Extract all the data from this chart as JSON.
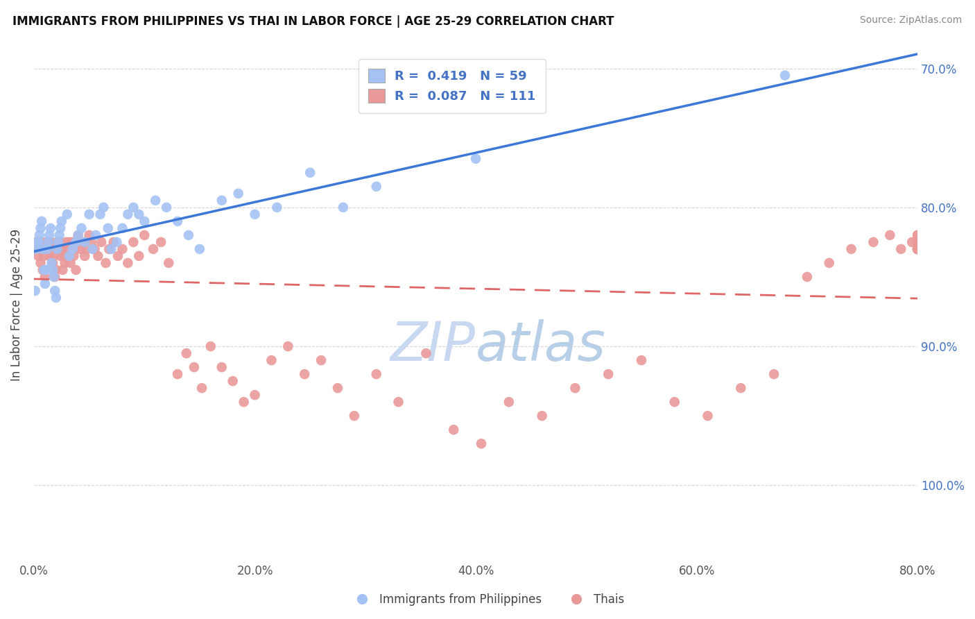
{
  "title": "IMMIGRANTS FROM PHILIPPINES VS THAI IN LABOR FORCE | AGE 25-29 CORRELATION CHART",
  "source": "Source: ZipAtlas.com",
  "ylabel": "In Labor Force | Age 25-29",
  "xlim": [
    0.0,
    0.8
  ],
  "ylim": [
    0.645,
    1.015
  ],
  "xtick_labels": [
    "0.0%",
    "20.0%",
    "40.0%",
    "60.0%",
    "80.0%"
  ],
  "xtick_vals": [
    0.0,
    0.2,
    0.4,
    0.6,
    0.8
  ],
  "ytick_vals": [
    0.7,
    0.8,
    0.9,
    1.0
  ],
  "right_ytick_labels": [
    "100.0%",
    "90.0%",
    "80.0%",
    "70.0%"
  ],
  "philippines_R": 0.419,
  "philippines_N": 59,
  "thai_R": 0.087,
  "thai_N": 111,
  "blue_color": "#a4c2f4",
  "pink_color": "#ea9999",
  "trend_blue": "#3c78d8",
  "trend_pink": "#e06666",
  "legend_R_color": "#4472c4",
  "background_color": "#ffffff",
  "watermark_color": "#c8d8f0",
  "philippines_x": [
    0.001,
    0.002,
    0.003,
    0.004,
    0.005,
    0.006,
    0.007,
    0.008,
    0.009,
    0.01,
    0.011,
    0.012,
    0.013,
    0.014,
    0.015,
    0.016,
    0.017,
    0.018,
    0.019,
    0.02,
    0.021,
    0.022,
    0.023,
    0.024,
    0.025,
    0.03,
    0.032,
    0.035,
    0.038,
    0.04,
    0.043,
    0.046,
    0.05,
    0.053,
    0.056,
    0.06,
    0.063,
    0.067,
    0.07,
    0.075,
    0.08,
    0.085,
    0.09,
    0.095,
    0.1,
    0.11,
    0.12,
    0.13,
    0.14,
    0.15,
    0.17,
    0.185,
    0.2,
    0.22,
    0.25,
    0.28,
    0.31,
    0.4,
    0.68
  ],
  "philippines_y": [
    0.84,
    0.87,
    0.875,
    0.875,
    0.88,
    0.885,
    0.89,
    0.87,
    0.855,
    0.845,
    0.855,
    0.87,
    0.875,
    0.88,
    0.885,
    0.86,
    0.855,
    0.85,
    0.84,
    0.835,
    0.87,
    0.875,
    0.88,
    0.885,
    0.89,
    0.895,
    0.865,
    0.87,
    0.875,
    0.88,
    0.885,
    0.875,
    0.895,
    0.87,
    0.88,
    0.895,
    0.9,
    0.885,
    0.87,
    0.875,
    0.885,
    0.895,
    0.9,
    0.895,
    0.89,
    0.905,
    0.9,
    0.89,
    0.88,
    0.87,
    0.905,
    0.91,
    0.895,
    0.9,
    0.925,
    0.9,
    0.915,
    0.935,
    0.995
  ],
  "thai_x": [
    0.001,
    0.002,
    0.003,
    0.004,
    0.005,
    0.006,
    0.007,
    0.008,
    0.009,
    0.01,
    0.011,
    0.012,
    0.013,
    0.014,
    0.015,
    0.016,
    0.017,
    0.018,
    0.019,
    0.02,
    0.021,
    0.022,
    0.023,
    0.024,
    0.025,
    0.026,
    0.027,
    0.028,
    0.029,
    0.03,
    0.031,
    0.032,
    0.033,
    0.034,
    0.035,
    0.036,
    0.037,
    0.038,
    0.04,
    0.042,
    0.044,
    0.046,
    0.048,
    0.05,
    0.052,
    0.055,
    0.058,
    0.061,
    0.065,
    0.068,
    0.072,
    0.076,
    0.08,
    0.085,
    0.09,
    0.095,
    0.1,
    0.108,
    0.115,
    0.122,
    0.13,
    0.138,
    0.145,
    0.152,
    0.16,
    0.17,
    0.18,
    0.19,
    0.2,
    0.215,
    0.23,
    0.245,
    0.26,
    0.275,
    0.29,
    0.31,
    0.33,
    0.355,
    0.38,
    0.405,
    0.43,
    0.46,
    0.49,
    0.52,
    0.55,
    0.58,
    0.61,
    0.64,
    0.67,
    0.7,
    0.72,
    0.74,
    0.76,
    0.775,
    0.785,
    0.795,
    0.8,
    0.8,
    0.8,
    0.8,
    0.8,
    0.8,
    0.8,
    0.8,
    0.8,
    0.8,
    0.8,
    0.8,
    0.8,
    0.8,
    0.8
  ],
  "thai_y": [
    0.875,
    0.87,
    0.875,
    0.865,
    0.87,
    0.86,
    0.875,
    0.855,
    0.865,
    0.85,
    0.87,
    0.875,
    0.87,
    0.865,
    0.875,
    0.87,
    0.86,
    0.865,
    0.85,
    0.855,
    0.875,
    0.87,
    0.875,
    0.865,
    0.87,
    0.855,
    0.865,
    0.86,
    0.875,
    0.87,
    0.865,
    0.875,
    0.86,
    0.87,
    0.875,
    0.865,
    0.87,
    0.855,
    0.88,
    0.87,
    0.875,
    0.865,
    0.87,
    0.88,
    0.875,
    0.87,
    0.865,
    0.875,
    0.86,
    0.87,
    0.875,
    0.865,
    0.87,
    0.86,
    0.875,
    0.865,
    0.88,
    0.87,
    0.875,
    0.86,
    0.78,
    0.795,
    0.785,
    0.77,
    0.8,
    0.785,
    0.775,
    0.76,
    0.765,
    0.79,
    0.8,
    0.78,
    0.79,
    0.77,
    0.75,
    0.78,
    0.76,
    0.795,
    0.74,
    0.73,
    0.76,
    0.75,
    0.77,
    0.78,
    0.79,
    0.76,
    0.75,
    0.77,
    0.78,
    0.85,
    0.86,
    0.87,
    0.875,
    0.88,
    0.87,
    0.875,
    0.88,
    0.87,
    0.875,
    0.88,
    0.87,
    0.875,
    0.87,
    0.875,
    0.87,
    0.875,
    0.87,
    0.875,
    0.87,
    0.875,
    0.87
  ]
}
